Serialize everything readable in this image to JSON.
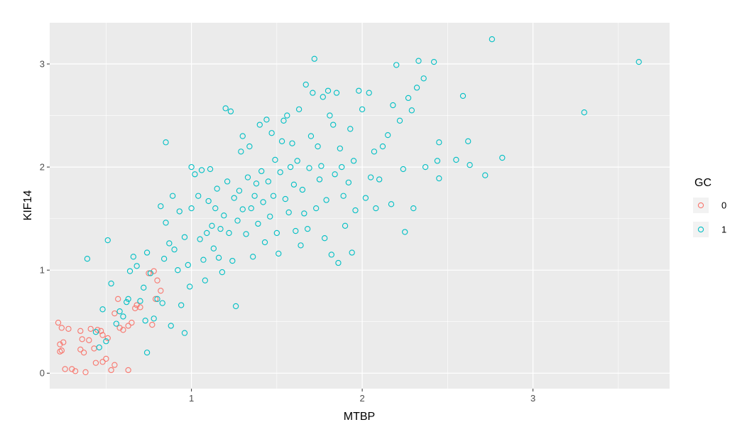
{
  "chart_data": {
    "type": "scatter",
    "xlabel": "MTBP",
    "ylabel": "KIF14",
    "xlim": [
      0.17,
      3.8
    ],
    "ylim": [
      -0.15,
      3.4
    ],
    "x_ticks": [
      1,
      2,
      3
    ],
    "y_ticks": [
      0,
      1,
      2,
      3
    ],
    "grid": true,
    "legend": {
      "title": "GC",
      "position": "right"
    },
    "colors": {
      "0": "#F8766D",
      "1": "#00BFC4",
      "panel": "#EBEBEB",
      "grid": "#FFFFFF"
    },
    "series": [
      {
        "name": "0",
        "color": "#F8766D",
        "points": [
          [
            0.22,
            0.49
          ],
          [
            0.24,
            0.44
          ],
          [
            0.23,
            0.28
          ],
          [
            0.24,
            0.22
          ],
          [
            0.23,
            0.21
          ],
          [
            0.25,
            0.3
          ],
          [
            0.26,
            0.04
          ],
          [
            0.28,
            0.43
          ],
          [
            0.3,
            0.04
          ],
          [
            0.32,
            0.02
          ],
          [
            0.35,
            0.41
          ],
          [
            0.35,
            0.23
          ],
          [
            0.36,
            0.33
          ],
          [
            0.37,
            0.2
          ],
          [
            0.38,
            0.01
          ],
          [
            0.4,
            0.32
          ],
          [
            0.41,
            0.43
          ],
          [
            0.43,
            0.24
          ],
          [
            0.44,
            0.1
          ],
          [
            0.45,
            0.42
          ],
          [
            0.47,
            0.41
          ],
          [
            0.48,
            0.37
          ],
          [
            0.48,
            0.11
          ],
          [
            0.5,
            0.14
          ],
          [
            0.51,
            0.34
          ],
          [
            0.53,
            0.03
          ],
          [
            0.55,
            0.08
          ],
          [
            0.55,
            0.58
          ],
          [
            0.57,
            0.72
          ],
          [
            0.58,
            0.44
          ],
          [
            0.6,
            0.42
          ],
          [
            0.63,
            0.03
          ],
          [
            0.63,
            0.46
          ],
          [
            0.65,
            0.49
          ],
          [
            0.67,
            0.63
          ],
          [
            0.68,
            0.66
          ],
          [
            0.7,
            0.64
          ],
          [
            0.75,
            0.97
          ],
          [
            0.77,
            0.47
          ],
          [
            0.78,
            0.99
          ],
          [
            0.8,
            0.9
          ],
          [
            0.79,
            0.72
          ],
          [
            0.82,
            0.8
          ]
        ]
      },
      {
        "name": "1",
        "color": "#00BFC4",
        "points": [
          [
            0.39,
            1.11
          ],
          [
            0.44,
            0.4
          ],
          [
            0.46,
            0.25
          ],
          [
            0.48,
            0.62
          ],
          [
            0.5,
            0.31
          ],
          [
            0.53,
            0.87
          ],
          [
            0.51,
            1.29
          ],
          [
            0.56,
            0.48
          ],
          [
            0.58,
            0.6
          ],
          [
            0.6,
            0.55
          ],
          [
            0.62,
            0.69
          ],
          [
            0.63,
            0.72
          ],
          [
            0.64,
            0.99
          ],
          [
            0.66,
            1.13
          ],
          [
            0.68,
            1.04
          ],
          [
            0.7,
            0.7
          ],
          [
            0.72,
            0.83
          ],
          [
            0.73,
            0.51
          ],
          [
            0.74,
            1.17
          ],
          [
            0.74,
            0.2
          ],
          [
            0.76,
            0.97
          ],
          [
            0.78,
            0.53
          ],
          [
            0.8,
            0.72
          ],
          [
            0.82,
            1.62
          ],
          [
            0.83,
            0.68
          ],
          [
            0.84,
            1.11
          ],
          [
            0.85,
            1.46
          ],
          [
            0.85,
            2.24
          ],
          [
            0.87,
            1.26
          ],
          [
            0.88,
            0.46
          ],
          [
            0.89,
            1.72
          ],
          [
            0.9,
            1.2
          ],
          [
            0.92,
            1.0
          ],
          [
            0.93,
            1.57
          ],
          [
            0.94,
            0.66
          ],
          [
            0.96,
            1.32
          ],
          [
            0.96,
            0.39
          ],
          [
            0.98,
            1.05
          ],
          [
            0.99,
            0.84
          ],
          [
            1.0,
            1.6
          ],
          [
            1.0,
            2.0
          ],
          [
            1.02,
            1.93
          ],
          [
            1.04,
            1.72
          ],
          [
            1.05,
            1.3
          ],
          [
            1.06,
            1.97
          ],
          [
            1.07,
            1.1
          ],
          [
            1.08,
            0.9
          ],
          [
            1.09,
            1.36
          ],
          [
            1.1,
            1.67
          ],
          [
            1.11,
            1.98
          ],
          [
            1.12,
            1.43
          ],
          [
            1.13,
            1.21
          ],
          [
            1.14,
            1.6
          ],
          [
            1.15,
            1.79
          ],
          [
            1.16,
            1.12
          ],
          [
            1.17,
            1.4
          ],
          [
            1.18,
            0.98
          ],
          [
            1.19,
            1.53
          ],
          [
            1.2,
            2.57
          ],
          [
            1.21,
            1.86
          ],
          [
            1.22,
            1.36
          ],
          [
            1.23,
            2.54
          ],
          [
            1.24,
            1.09
          ],
          [
            1.25,
            1.7
          ],
          [
            1.26,
            0.65
          ],
          [
            1.27,
            1.48
          ],
          [
            1.28,
            1.77
          ],
          [
            1.29,
            2.15
          ],
          [
            1.3,
            2.3
          ],
          [
            1.3,
            1.59
          ],
          [
            1.32,
            1.35
          ],
          [
            1.33,
            1.9
          ],
          [
            1.34,
            2.2
          ],
          [
            1.35,
            1.6
          ],
          [
            1.36,
            1.13
          ],
          [
            1.37,
            1.72
          ],
          [
            1.38,
            1.84
          ],
          [
            1.39,
            1.45
          ],
          [
            1.4,
            2.41
          ],
          [
            1.41,
            1.96
          ],
          [
            1.42,
            1.66
          ],
          [
            1.43,
            1.27
          ],
          [
            1.44,
            2.46
          ],
          [
            1.45,
            1.86
          ],
          [
            1.46,
            1.52
          ],
          [
            1.47,
            2.33
          ],
          [
            1.48,
            1.72
          ],
          [
            1.49,
            2.07
          ],
          [
            1.5,
            1.36
          ],
          [
            1.51,
            1.16
          ],
          [
            1.52,
            1.95
          ],
          [
            1.53,
            2.25
          ],
          [
            1.54,
            2.45
          ],
          [
            1.55,
            1.69
          ],
          [
            1.56,
            2.5
          ],
          [
            1.57,
            1.56
          ],
          [
            1.58,
            2.0
          ],
          [
            1.59,
            2.23
          ],
          [
            1.6,
            1.83
          ],
          [
            1.61,
            1.38
          ],
          [
            1.62,
            2.06
          ],
          [
            1.63,
            2.56
          ],
          [
            1.64,
            1.24
          ],
          [
            1.65,
            1.78
          ],
          [
            1.66,
            1.55
          ],
          [
            1.67,
            2.8
          ],
          [
            1.68,
            1.4
          ],
          [
            1.69,
            1.99
          ],
          [
            1.7,
            2.3
          ],
          [
            1.71,
            2.72
          ],
          [
            1.72,
            3.05
          ],
          [
            1.73,
            1.6
          ],
          [
            1.74,
            2.2
          ],
          [
            1.75,
            1.88
          ],
          [
            1.76,
            2.01
          ],
          [
            1.77,
            2.68
          ],
          [
            1.78,
            1.31
          ],
          [
            1.79,
            1.68
          ],
          [
            1.8,
            2.74
          ],
          [
            1.81,
            2.5
          ],
          [
            1.82,
            1.15
          ],
          [
            1.83,
            2.41
          ],
          [
            1.84,
            1.93
          ],
          [
            1.85,
            2.72
          ],
          [
            1.86,
            1.07
          ],
          [
            1.87,
            2.18
          ],
          [
            1.88,
            2.0
          ],
          [
            1.89,
            1.72
          ],
          [
            1.9,
            1.43
          ],
          [
            1.92,
            1.85
          ],
          [
            1.93,
            2.37
          ],
          [
            1.94,
            1.17
          ],
          [
            1.95,
            2.06
          ],
          [
            1.96,
            1.58
          ],
          [
            1.98,
            2.74
          ],
          [
            2.0,
            2.56
          ],
          [
            2.02,
            1.7
          ],
          [
            2.04,
            2.72
          ],
          [
            2.05,
            1.9
          ],
          [
            2.07,
            2.15
          ],
          [
            2.08,
            1.6
          ],
          [
            2.1,
            1.88
          ],
          [
            2.12,
            2.2
          ],
          [
            2.15,
            2.31
          ],
          [
            2.17,
            1.64
          ],
          [
            2.18,
            2.6
          ],
          [
            2.2,
            2.99
          ],
          [
            2.22,
            2.45
          ],
          [
            2.24,
            1.98
          ],
          [
            2.25,
            1.37
          ],
          [
            2.27,
            2.67
          ],
          [
            2.29,
            2.55
          ],
          [
            2.3,
            1.6
          ],
          [
            2.32,
            2.77
          ],
          [
            2.33,
            3.03
          ],
          [
            2.36,
            2.86
          ],
          [
            2.37,
            2.0
          ],
          [
            2.42,
            3.02
          ],
          [
            2.44,
            2.06
          ],
          [
            2.45,
            2.24
          ],
          [
            2.45,
            1.89
          ],
          [
            2.55,
            2.07
          ],
          [
            2.59,
            2.69
          ],
          [
            2.62,
            2.25
          ],
          [
            2.63,
            2.02
          ],
          [
            2.72,
            1.92
          ],
          [
            2.76,
            3.24
          ],
          [
            2.82,
            2.09
          ],
          [
            3.3,
            2.53
          ],
          [
            3.62,
            3.02
          ]
        ]
      }
    ]
  }
}
